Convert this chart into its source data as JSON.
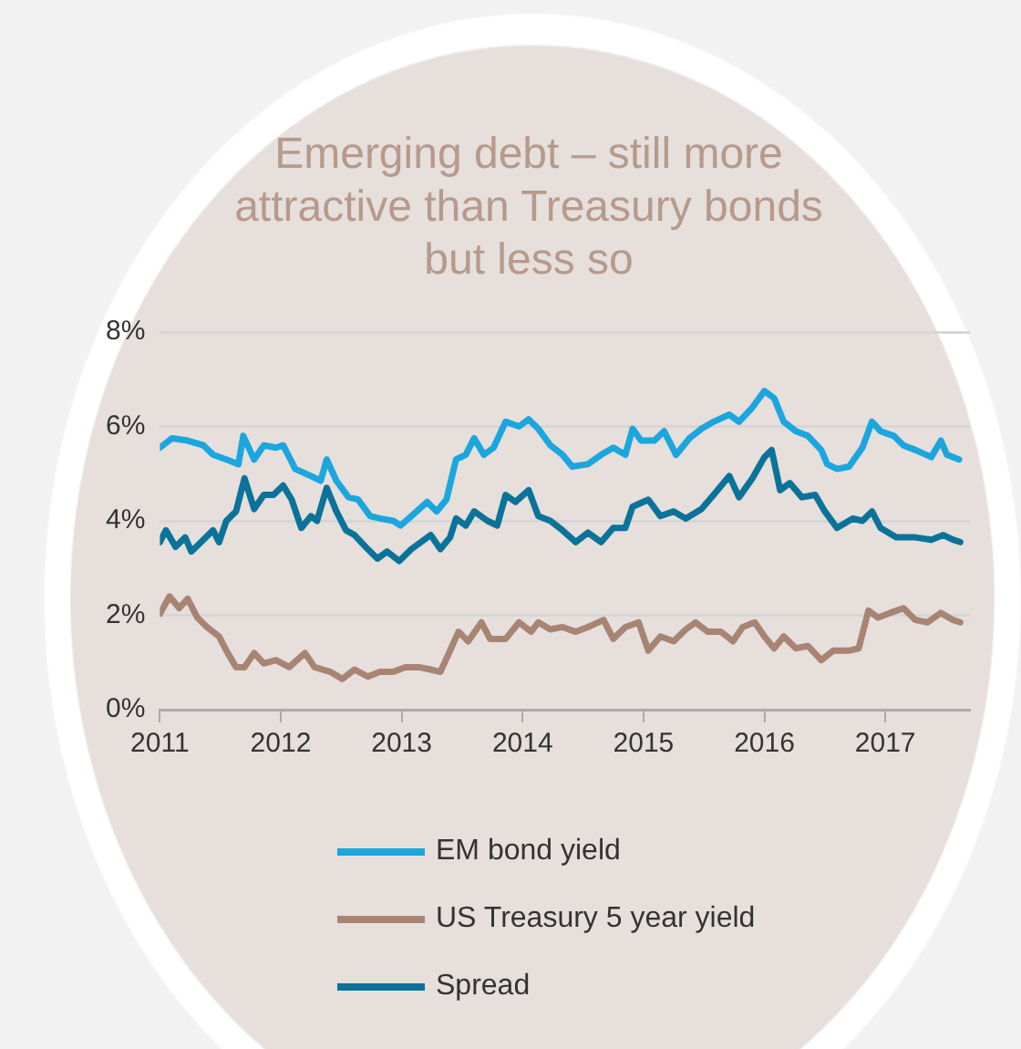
{
  "chart_data": {
    "type": "line",
    "title": "Emerging debt – still more attractive than Treasury bonds but less so",
    "xlim": [
      2011,
      2017.7
    ],
    "xticks": [
      2011,
      2012,
      2013,
      2014,
      2015,
      2016,
      2017
    ],
    "ylim": [
      0,
      8
    ],
    "yticks": [
      {
        "value": 0,
        "label": "0%"
      },
      {
        "value": 2,
        "label": "2%"
      },
      {
        "value": 4,
        "label": "4%"
      },
      {
        "value": 6,
        "label": "6%"
      },
      {
        "value": 8,
        "label": "8%"
      }
    ],
    "grid": "y",
    "legend": "bottom",
    "marker": "none",
    "line_style": "solid",
    "series": [
      {
        "name": "EM bond yield",
        "color": "#1ba6dd",
        "x": [
          2011.0,
          2011.1,
          2011.23,
          2011.36,
          2011.44,
          2011.55,
          2011.65,
          2011.69,
          2011.78,
          2011.86,
          2011.96,
          2012.02,
          2012.12,
          2012.25,
          2012.33,
          2012.38,
          2012.46,
          2012.56,
          2012.64,
          2012.74,
          2012.82,
          2012.93,
          2012.99,
          2013.08,
          2013.21,
          2013.29,
          2013.37,
          2013.45,
          2013.53,
          2013.6,
          2013.68,
          2013.76,
          2013.86,
          2013.97,
          2014.05,
          2014.13,
          2014.23,
          2014.33,
          2014.41,
          2014.54,
          2014.65,
          2014.75,
          2014.85,
          2014.91,
          2014.98,
          2015.09,
          2015.17,
          2015.27,
          2015.38,
          2015.48,
          2015.58,
          2015.71,
          2015.79,
          2015.9,
          2016.0,
          2016.08,
          2016.16,
          2016.26,
          2016.36,
          2016.47,
          2016.52,
          2016.6,
          2016.7,
          2016.81,
          2016.89,
          2016.96,
          2017.07,
          2017.15,
          2017.25,
          2017.38,
          2017.46,
          2017.51,
          2017.61
        ],
        "values": [
          5.55,
          5.75,
          5.7,
          5.6,
          5.4,
          5.3,
          5.2,
          5.8,
          5.3,
          5.6,
          5.55,
          5.6,
          5.1,
          4.95,
          4.85,
          5.3,
          4.85,
          4.5,
          4.45,
          4.1,
          4.05,
          4.0,
          3.9,
          4.1,
          4.4,
          4.2,
          4.45,
          5.3,
          5.4,
          5.75,
          5.4,
          5.55,
          6.1,
          6.0,
          6.15,
          5.95,
          5.6,
          5.4,
          5.15,
          5.2,
          5.4,
          5.55,
          5.4,
          5.95,
          5.7,
          5.7,
          5.9,
          5.4,
          5.75,
          5.95,
          6.1,
          6.25,
          6.1,
          6.4,
          6.75,
          6.6,
          6.1,
          5.9,
          5.8,
          5.5,
          5.2,
          5.1,
          5.15,
          5.55,
          6.1,
          5.9,
          5.8,
          5.6,
          5.5,
          5.35,
          5.7,
          5.4,
          5.3
        ]
      },
      {
        "name": "US Treasury 5 year yield",
        "color": "#a88473",
        "x": [
          2011.0,
          2011.08,
          2011.16,
          2011.23,
          2011.31,
          2011.39,
          2011.49,
          2011.55,
          2011.63,
          2011.7,
          2011.78,
          2011.86,
          2011.96,
          2012.07,
          2012.2,
          2012.28,
          2012.41,
          2012.51,
          2012.61,
          2012.72,
          2012.82,
          2012.93,
          2013.03,
          2013.14,
          2013.24,
          2013.32,
          2013.4,
          2013.47,
          2013.55,
          2013.66,
          2013.73,
          2013.86,
          2013.97,
          2014.07,
          2014.13,
          2014.23,
          2014.33,
          2014.44,
          2014.54,
          2014.67,
          2014.75,
          2014.85,
          2014.96,
          2015.04,
          2015.14,
          2015.25,
          2015.35,
          2015.43,
          2015.53,
          2015.64,
          2015.74,
          2015.82,
          2015.92,
          2016.0,
          2016.08,
          2016.16,
          2016.26,
          2016.36,
          2016.47,
          2016.57,
          2016.7,
          2016.78,
          2016.86,
          2016.94,
          2017.04,
          2017.15,
          2017.25,
          2017.35,
          2017.46,
          2017.56,
          2017.62
        ],
        "values": [
          2.03,
          2.4,
          2.15,
          2.35,
          1.95,
          1.75,
          1.55,
          1.25,
          0.9,
          0.9,
          1.2,
          0.98,
          1.05,
          0.9,
          1.2,
          0.9,
          0.8,
          0.65,
          0.85,
          0.7,
          0.8,
          0.8,
          0.9,
          0.9,
          0.85,
          0.8,
          1.25,
          1.65,
          1.45,
          1.85,
          1.5,
          1.5,
          1.85,
          1.65,
          1.85,
          1.7,
          1.75,
          1.65,
          1.75,
          1.9,
          1.5,
          1.75,
          1.85,
          1.25,
          1.55,
          1.45,
          1.7,
          1.85,
          1.65,
          1.65,
          1.45,
          1.75,
          1.85,
          1.55,
          1.3,
          1.55,
          1.3,
          1.35,
          1.05,
          1.25,
          1.25,
          1.3,
          2.1,
          1.95,
          2.05,
          2.15,
          1.9,
          1.85,
          2.05,
          1.9,
          1.85
        ]
      },
      {
        "name": "Spread",
        "color": "#0b7399",
        "x": [
          2011.0,
          2011.05,
          2011.13,
          2011.21,
          2011.26,
          2011.36,
          2011.44,
          2011.49,
          2011.55,
          2011.63,
          2011.7,
          2011.78,
          2011.86,
          2011.94,
          2012.02,
          2012.09,
          2012.17,
          2012.25,
          2012.3,
          2012.38,
          2012.46,
          2012.54,
          2012.61,
          2012.72,
          2012.8,
          2012.88,
          2012.98,
          2013.08,
          2013.16,
          2013.24,
          2013.32,
          2013.4,
          2013.45,
          2013.53,
          2013.6,
          2013.71,
          2013.79,
          2013.86,
          2013.94,
          2014.05,
          2014.13,
          2014.23,
          2014.33,
          2014.44,
          2014.54,
          2014.65,
          2014.75,
          2014.85,
          2014.91,
          2015.04,
          2015.14,
          2015.25,
          2015.35,
          2015.48,
          2015.58,
          2015.71,
          2015.79,
          2015.9,
          2016.0,
          2016.06,
          2016.13,
          2016.21,
          2016.31,
          2016.42,
          2016.5,
          2016.6,
          2016.73,
          2016.81,
          2016.89,
          2016.96,
          2017.09,
          2017.25,
          2017.38,
          2017.48,
          2017.56,
          2017.62
        ],
        "values": [
          3.55,
          3.8,
          3.45,
          3.65,
          3.35,
          3.6,
          3.8,
          3.55,
          4.0,
          4.2,
          4.9,
          4.25,
          4.55,
          4.55,
          4.75,
          4.45,
          3.85,
          4.1,
          4.0,
          4.7,
          4.2,
          3.8,
          3.7,
          3.4,
          3.2,
          3.35,
          3.15,
          3.4,
          3.55,
          3.7,
          3.4,
          3.65,
          4.05,
          3.9,
          4.2,
          4.0,
          3.9,
          4.55,
          4.4,
          4.65,
          4.1,
          4.0,
          3.8,
          3.55,
          3.75,
          3.55,
          3.85,
          3.85,
          4.3,
          4.45,
          4.1,
          4.2,
          4.05,
          4.25,
          4.55,
          4.95,
          4.5,
          4.9,
          5.35,
          5.5,
          4.65,
          4.8,
          4.5,
          4.55,
          4.2,
          3.85,
          4.05,
          4.0,
          4.2,
          3.85,
          3.65,
          3.65,
          3.6,
          3.7,
          3.6,
          3.55
        ]
      }
    ]
  }
}
